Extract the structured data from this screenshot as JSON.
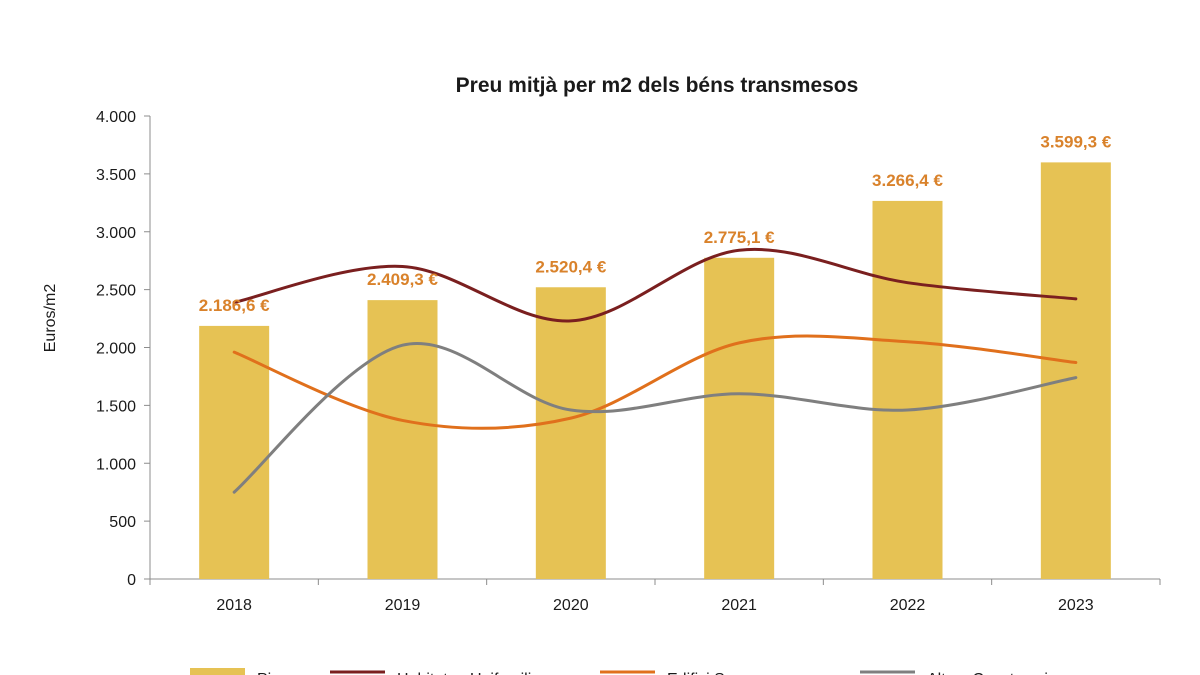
{
  "chart_data": {
    "type": "bar",
    "title": "Preu mitjà per m2 dels béns transmesos",
    "subtitle": "",
    "xlabel": "",
    "ylabel": "Euros/m2",
    "categories": [
      "2018",
      "2019",
      "2020",
      "2021",
      "2022",
      "2023"
    ],
    "ylim": [
      0,
      4000
    ],
    "yticks": [
      0,
      500,
      1000,
      1500,
      2000,
      2500,
      3000,
      3500,
      4000
    ],
    "ytick_labels": [
      "0",
      "500",
      "1.000",
      "1.500",
      "2.000",
      "2.500",
      "3.000",
      "3.500",
      "4.000"
    ],
    "grid": false,
    "legend_position": "bottom",
    "series": [
      {
        "name": "Pis",
        "kind": "bar",
        "color": "#e6c254",
        "values": [
          2186.6,
          2409.3,
          2520.4,
          2775.1,
          3266.4,
          3599.3
        ],
        "labels": [
          "2.186,6 €",
          "2.409,3 €",
          "2.520,4 €",
          "2.775,1 €",
          "3.266,4 €",
          "3.599,3 €"
        ],
        "label_color": "#d9822b"
      },
      {
        "name": "Habitatge Unifamiliar",
        "kind": "line",
        "color": "#7a1f1f",
        "values": [
          2390,
          2700,
          2230,
          2840,
          2560,
          2420
        ]
      },
      {
        "name": "Edifici Sencer",
        "kind": "line",
        "color": "#e0701c",
        "values": [
          1960,
          1370,
          1390,
          2040,
          2050,
          1870
        ]
      },
      {
        "name": "Altres Construccions",
        "kind": "line",
        "color": "#7f7f7f",
        "values": [
          750,
          2020,
          1460,
          1600,
          1460,
          1740
        ]
      }
    ]
  }
}
